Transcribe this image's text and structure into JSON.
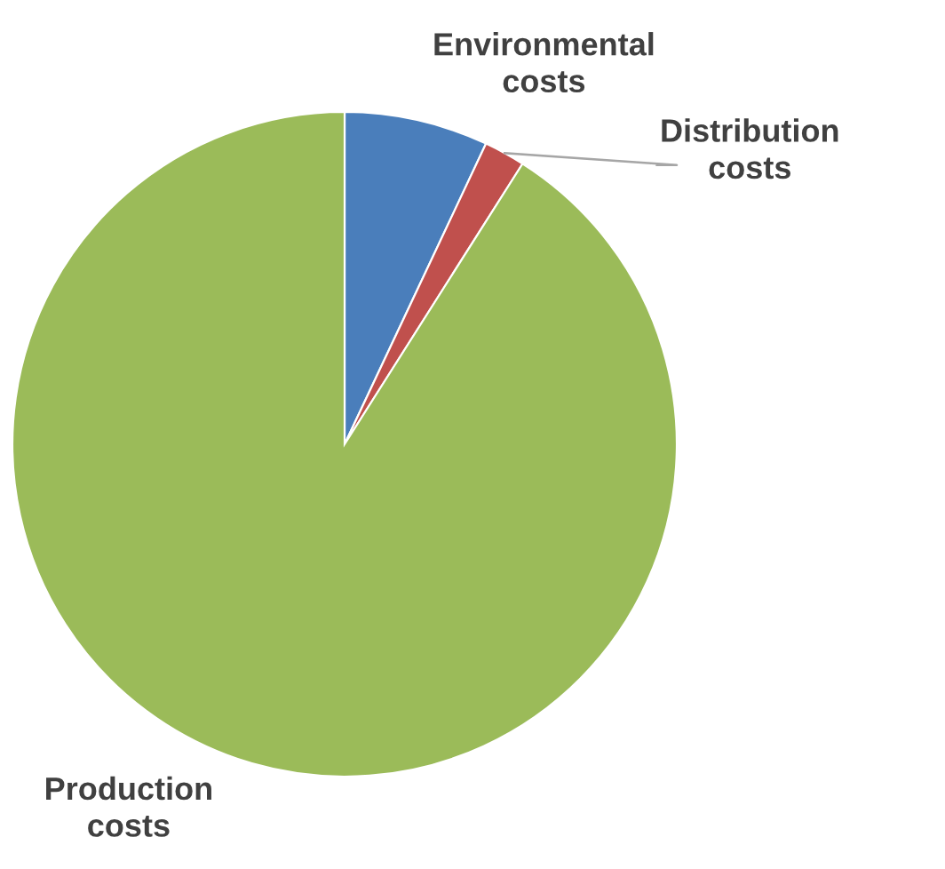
{
  "chart_data": {
    "type": "pie",
    "categories": [
      "Environmental costs",
      "Distribution costs",
      "Production costs"
    ],
    "values": [
      7,
      2,
      91
    ],
    "colors": [
      "#4a7ebb",
      "#c0504d",
      "#9bbb59"
    ],
    "legend": false
  }
}
